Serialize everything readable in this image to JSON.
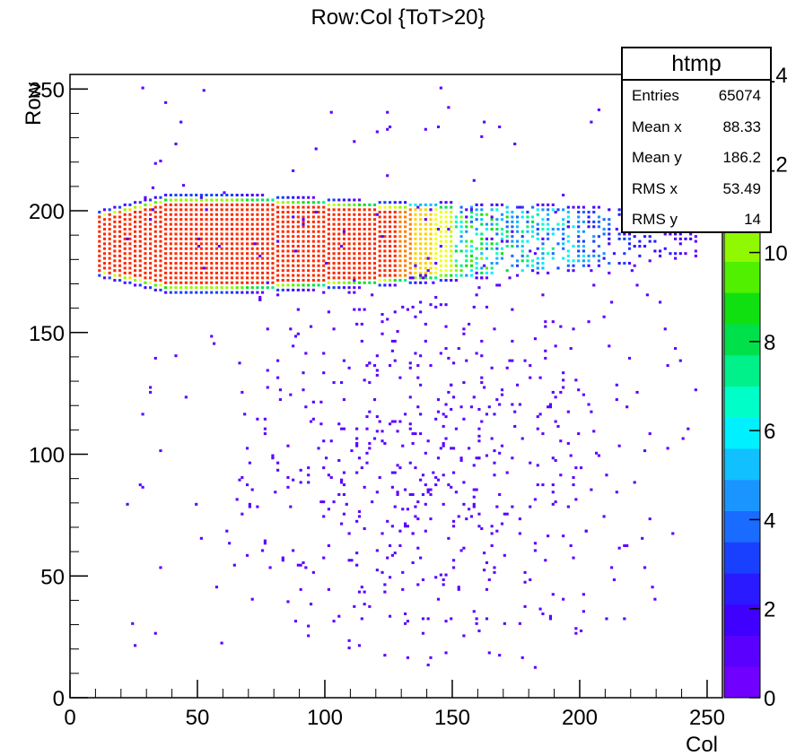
{
  "title": "Row:Col {ToT>20}",
  "stats": {
    "name": "htmp",
    "rows": [
      {
        "label": "Entries",
        "value": "65074"
      },
      {
        "label": "Mean x",
        "value": "88.33"
      },
      {
        "label": "Mean y",
        "value": "186.2"
      },
      {
        "label": "RMS x",
        "value": "53.49"
      },
      {
        "label": "RMS y",
        "value": "14"
      }
    ]
  },
  "chart_data": {
    "type": "heatmap",
    "title": "Row:Col {ToT>20}",
    "xlabel": "Col",
    "ylabel": "Row",
    "xlim": [
      0,
      256
    ],
    "ylim": [
      0,
      256
    ],
    "x_ticks": [
      0,
      50,
      100,
      150,
      200,
      250
    ],
    "y_ticks": [
      0,
      50,
      100,
      150,
      200,
      250
    ],
    "z_ticks": [
      0,
      2,
      4,
      6,
      8,
      10,
      12,
      14
    ],
    "zlim": [
      0,
      14
    ],
    "palette": "rainbow (violet→blue→cyan→green→yellow→red)",
    "description_points": {
      "band_core": {
        "x_range": [
          11,
          120
        ],
        "y_center": 186,
        "y_halfwidth": [
          13,
          20
        ],
        "z": 14
      },
      "band_tail": {
        "x_range": [
          120,
          245
        ],
        "y_center": 190,
        "y_halfwidth": 14,
        "z_decay": "14 → 2"
      },
      "sparse_cluster": {
        "x_center": 140,
        "y_center": 95,
        "z": 1
      }
    },
    "entries": 65074,
    "mean_x": 88.33,
    "mean_y": 186.2,
    "rms_x": 53.49,
    "rms_y": 14
  }
}
